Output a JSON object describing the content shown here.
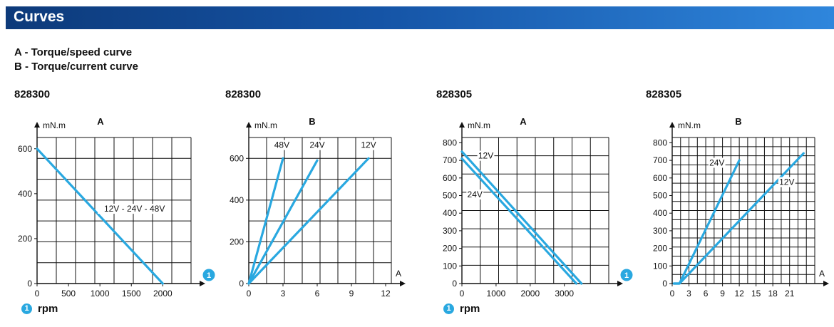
{
  "header": {
    "title": "Curves"
  },
  "legend": {
    "line_a": "A - Torque/speed curve",
    "line_b": "B - Torque/current curve"
  },
  "footnote": {
    "marker": "1",
    "text": "rpm"
  },
  "colors": {
    "header_dark": "#0d3a7a",
    "header_light": "#2f86dc",
    "curve": "#29a8e0",
    "grid": "#111111"
  },
  "chart_data": [
    {
      "code": "828300",
      "title": "A",
      "type": "line",
      "ylabel": "mN.m",
      "xlabel": "",
      "axis_marker": "1",
      "xlim": [
        0,
        2450
      ],
      "ylim": [
        0,
        650
      ],
      "xticks": [
        0,
        500,
        1000,
        1500,
        2000
      ],
      "yticks": [
        0,
        200,
        400,
        600
      ],
      "grid": true,
      "series": [
        {
          "values": [
            [
              0,
              600
            ],
            [
              2000,
              0
            ]
          ]
        }
      ],
      "annotations": [
        {
          "text": "12V - 24V - 48V",
          "x": 1550,
          "y": 320
        }
      ]
    },
    {
      "code": "828300",
      "title": "B",
      "type": "line",
      "ylabel": "mN.m",
      "xlabel": "A",
      "xlim": [
        0,
        12.5
      ],
      "ylim": [
        0,
        700
      ],
      "xticks": [
        0,
        3,
        6,
        9,
        12
      ],
      "yticks": [
        0,
        200,
        400,
        600
      ],
      "grid": true,
      "series": [
        {
          "name": "48V",
          "values": [
            [
              0,
              0
            ],
            [
              3,
              600
            ]
          ]
        },
        {
          "name": "24V",
          "values": [
            [
              0,
              0
            ],
            [
              6,
              590
            ]
          ]
        },
        {
          "name": "12V",
          "values": [
            [
              0,
              0
            ],
            [
              10.5,
              600
            ]
          ]
        }
      ],
      "annotations": [
        {
          "text": "48V",
          "x": 2.9,
          "y": 650
        },
        {
          "text": "24V",
          "x": 6.0,
          "y": 650
        },
        {
          "text": "12V",
          "x": 10.5,
          "y": 650
        }
      ]
    },
    {
      "code": "828305",
      "title": "A",
      "type": "line",
      "ylabel": "mN.m",
      "xlabel": "",
      "axis_marker": "1",
      "xlim": [
        0,
        4300
      ],
      "ylim": [
        0,
        830
      ],
      "xticks": [
        0,
        1000,
        2000,
        3000
      ],
      "yticks": [
        0,
        100,
        200,
        300,
        400,
        500,
        600,
        700,
        800
      ],
      "grid": true,
      "series": [
        {
          "name": "12V",
          "values": [
            [
              0,
              750
            ],
            [
              3500,
              0
            ]
          ]
        },
        {
          "name": "24V",
          "values": [
            [
              0,
              710
            ],
            [
              3350,
              0
            ]
          ]
        }
      ],
      "annotations": [
        {
          "text": "12V",
          "x": 700,
          "y": 710
        },
        {
          "text": "24V",
          "x": 380,
          "y": 490
        }
      ]
    },
    {
      "code": "828305",
      "title": "B",
      "type": "line",
      "ylabel": "mN.m",
      "xlabel": "A",
      "xlim": [
        0,
        25.5
      ],
      "ylim": [
        0,
        830
      ],
      "xticks": [
        0,
        3,
        6,
        9,
        12,
        15,
        18,
        21
      ],
      "yticks": [
        0,
        100,
        200,
        300,
        400,
        500,
        600,
        700,
        800
      ],
      "grid": true,
      "series": [
        {
          "name": "24V",
          "values": [
            [
              0.3,
              0
            ],
            [
              1.3,
              0
            ],
            [
              12,
              700
            ]
          ]
        },
        {
          "name": "12V",
          "values": [
            [
              0.3,
              0
            ],
            [
              1.3,
              0
            ],
            [
              23.5,
              740
            ]
          ]
        }
      ],
      "annotations": [
        {
          "text": "24V",
          "x": 8.0,
          "y": 670
        },
        {
          "text": "12V",
          "x": 20.5,
          "y": 560
        }
      ]
    }
  ]
}
